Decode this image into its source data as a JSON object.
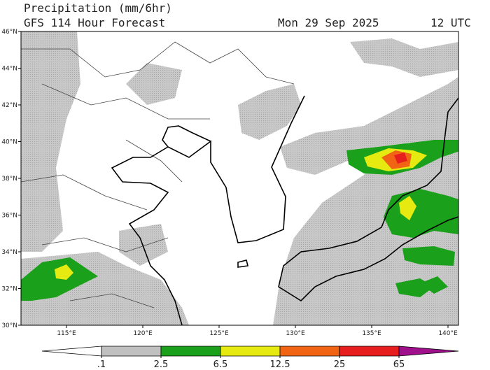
{
  "header": {
    "title": "Precipitation (mm/6hr)",
    "subtitle": "GFS 114 Hour Forecast",
    "date": "Mon 29 Sep 2025",
    "time": "12 UTC"
  },
  "map": {
    "lat_labels": [
      "30°N",
      "32°N",
      "34°N",
      "36°N",
      "38°N",
      "40°N",
      "42°N",
      "44°N",
      "46°N"
    ],
    "lon_labels": [
      "115°E",
      "120°E",
      "125°E",
      "130°E",
      "135°E",
      "140°E"
    ]
  },
  "legend": {
    "levels": [
      {
        "value": 0.1,
        "label": ".1"
      },
      2.5,
      6.5,
      12.5,
      25,
      65
    ],
    "colors": [
      "#ffffff",
      "#c0c0c0",
      "#1aa01a",
      "#e6ea10",
      "#f06414",
      "#e61e1e",
      "#a0108c"
    ]
  }
}
